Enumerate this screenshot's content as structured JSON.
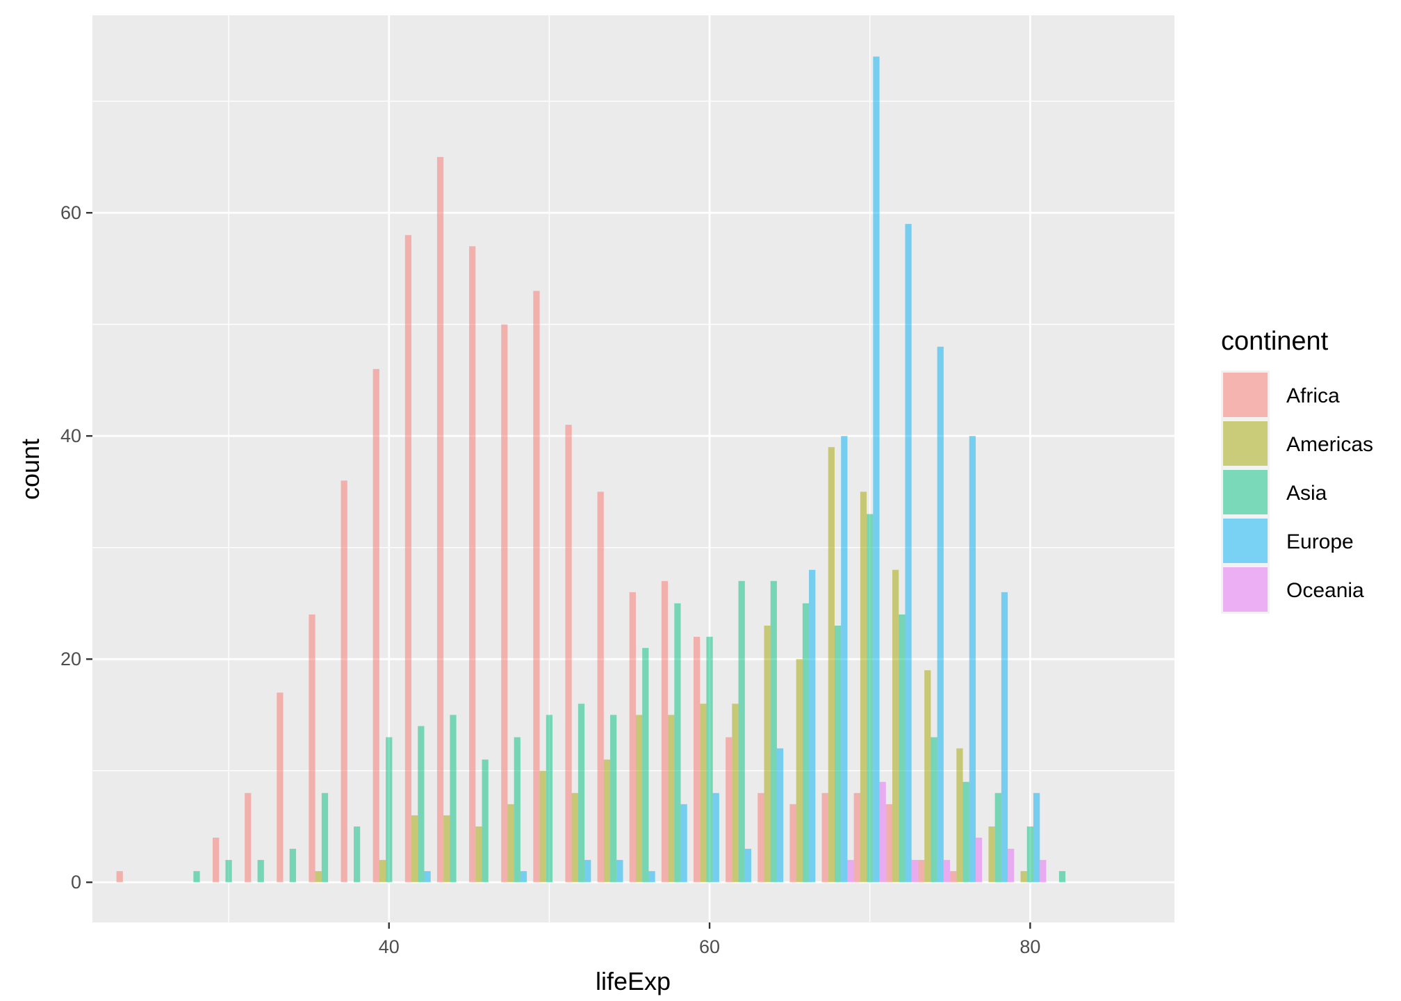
{
  "chart_data": {
    "type": "bar",
    "subtype": "dodged-histogram",
    "xlabel": "lifeExp",
    "ylabel": "count",
    "xlim": [
      21.5,
      89.0
    ],
    "ylim": [
      -3.6,
      77.7
    ],
    "x_ticks": [
      40,
      60,
      80
    ],
    "y_ticks": [
      0,
      20,
      40,
      60
    ],
    "grid": true,
    "legend_title": "continent",
    "legend_position": "right",
    "bin_width": 2.0,
    "bin_centers": [
      24,
      26,
      28,
      30,
      32,
      34,
      36,
      38,
      40,
      42,
      44,
      46,
      48,
      50,
      52,
      54,
      56,
      58,
      60,
      62,
      64,
      66,
      68,
      70,
      72,
      74,
      76,
      78,
      80,
      82
    ],
    "series": [
      {
        "name": "Africa",
        "color": "#F8766D",
        "values": [
          1,
          0,
          0,
          4,
          8,
          17,
          24,
          36,
          46,
          58,
          65,
          57,
          50,
          53,
          41,
          35,
          26,
          27,
          22,
          13,
          8,
          7,
          8,
          8,
          7,
          2,
          1,
          0,
          0,
          0
        ]
      },
      {
        "name": "Americas",
        "color": "#A3A500",
        "values": [
          0,
          0,
          0,
          0,
          0,
          0,
          1,
          0,
          2,
          6,
          6,
          5,
          7,
          10,
          8,
          11,
          15,
          15,
          16,
          16,
          23,
          20,
          39,
          35,
          28,
          19,
          12,
          5,
          1,
          0
        ]
      },
      {
        "name": "Asia",
        "color": "#00BF7D",
        "values": [
          0,
          0,
          1,
          2,
          2,
          3,
          8,
          5,
          13,
          14,
          15,
          11,
          13,
          15,
          16,
          15,
          21,
          25,
          22,
          27,
          27,
          25,
          23,
          33,
          24,
          13,
          9,
          8,
          5,
          1
        ]
      },
      {
        "name": "Europe",
        "color": "#00B0F6",
        "values": [
          0,
          0,
          0,
          0,
          0,
          0,
          0,
          0,
          0,
          1,
          0,
          0,
          1,
          0,
          2,
          2,
          1,
          7,
          8,
          3,
          12,
          28,
          40,
          74,
          59,
          48,
          40,
          26,
          8,
          0
        ]
      },
      {
        "name": "Oceania",
        "color": "#E76BF3",
        "values": [
          0,
          0,
          0,
          0,
          0,
          0,
          0,
          0,
          0,
          0,
          0,
          0,
          0,
          0,
          0,
          0,
          0,
          0,
          0,
          0,
          0,
          0,
          2,
          9,
          2,
          2,
          4,
          3,
          2,
          0
        ]
      }
    ]
  }
}
